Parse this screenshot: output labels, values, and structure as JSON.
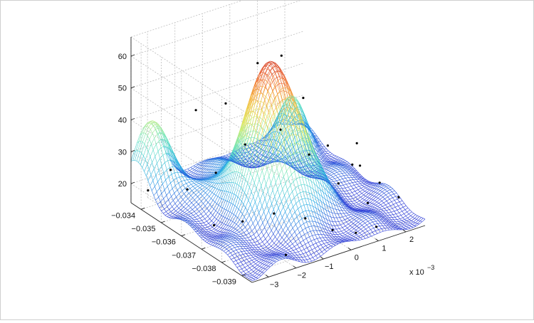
{
  "chart_data": {
    "type": "surface",
    "title": "",
    "z_ticks": [
      20,
      30,
      40,
      50,
      60
    ],
    "z_range": [
      14,
      66
    ],
    "y_ticks": [
      -0.034,
      -0.035,
      -0.036,
      -0.037,
      -0.038,
      -0.039
    ],
    "y_tick_labels": [
      "−0.034",
      "−0.035",
      "−0.036",
      "−0.037",
      "−0.038",
      "−0.039"
    ],
    "y_range": [
      -0.0395,
      -0.0335
    ],
    "x_ticks": [
      -3,
      -2,
      -1,
      0,
      1,
      2
    ],
    "x_tick_labels": [
      "−3",
      "−2",
      "−1",
      "0",
      "1",
      "2"
    ],
    "x_range": [
      -3.6,
      2.7
    ],
    "x_multiplier_label": "x 10",
    "x_multiplier_exponent": "−3",
    "colormap": [
      "#2b3bd6",
      "#27a9e6",
      "#63e3c3",
      "#d7ef6a",
      "#f5c242",
      "#ef6a32",
      "#c92b1e"
    ],
    "peak": {
      "x": -0.7,
      "y": -0.0366,
      "z": 65
    },
    "grid": true,
    "samples": [
      {
        "x": -3.2,
        "y": -0.0338,
        "z": 18
      },
      {
        "x": -2.6,
        "y": -0.0341,
        "z": 24
      },
      {
        "x": -1.9,
        "y": -0.0344,
        "z": 42
      },
      {
        "x": -1.4,
        "y": -0.0352,
        "z": 46
      },
      {
        "x": -0.9,
        "y": -0.0361,
        "z": 61
      },
      {
        "x": -0.4,
        "y": -0.0366,
        "z": 64
      },
      {
        "x": 0.1,
        "y": -0.037,
        "z": 51
      },
      {
        "x": 0.7,
        "y": -0.0374,
        "z": 36
      },
      {
        "x": 1.3,
        "y": -0.0378,
        "z": 30
      },
      {
        "x": 2.0,
        "y": -0.0382,
        "z": 24
      },
      {
        "x": 2.4,
        "y": -0.0386,
        "z": 20
      },
      {
        "x": -2.8,
        "y": -0.0352,
        "z": 23
      },
      {
        "x": -2.2,
        "y": -0.0358,
        "z": 29
      },
      {
        "x": -1.5,
        "y": -0.0363,
        "z": 38
      },
      {
        "x": -0.8,
        "y": -0.0371,
        "z": 44
      },
      {
        "x": -0.2,
        "y": -0.0377,
        "z": 37
      },
      {
        "x": 0.5,
        "y": -0.0382,
        "z": 28
      },
      {
        "x": 1.2,
        "y": -0.0387,
        "z": 22
      },
      {
        "x": -3.0,
        "y": -0.0368,
        "z": 19
      },
      {
        "x": -2.4,
        "y": -0.0374,
        "z": 21
      },
      {
        "x": -1.7,
        "y": -0.038,
        "z": 24
      },
      {
        "x": -1.0,
        "y": -0.0386,
        "z": 23
      },
      {
        "x": -0.3,
        "y": -0.039,
        "z": 19
      },
      {
        "x": 0.4,
        "y": -0.0392,
        "z": 17
      },
      {
        "x": 1.0,
        "y": -0.0394,
        "z": 18
      },
      {
        "x": -2.0,
        "y": -0.039,
        "z": 16
      },
      {
        "x": 1.8,
        "y": -0.0375,
        "z": 27
      },
      {
        "x": 2.2,
        "y": -0.0368,
        "z": 30
      }
    ]
  }
}
